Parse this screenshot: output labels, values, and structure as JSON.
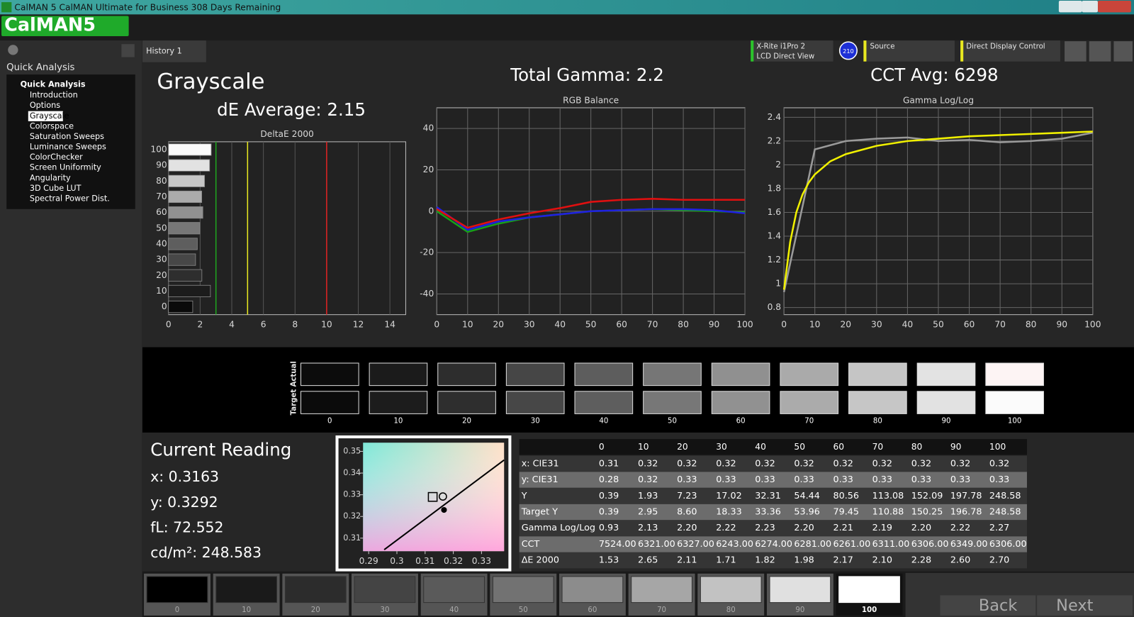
{
  "window": {
    "title": "CalMAN 5 CalMAN Ultimate for Business 308 Days Remaining",
    "logo": "CalMAN5"
  },
  "sidebar": {
    "header": "Quick Analysis",
    "group": "Quick Analysis",
    "items": [
      "Introduction",
      "Options",
      "Grayscale",
      "Colorspace",
      "Saturation Sweeps",
      "Luminance Sweeps",
      "ColorChecker",
      "Screen Uniformity",
      "Angularity",
      "3D Cube LUT",
      "Spectral Power Dist."
    ],
    "selected_index": 2
  },
  "tabs": [
    "History 1"
  ],
  "toolbar": {
    "meter": "X-Rite i1Pro 2",
    "meter_mode": "LCD Direct View",
    "badge": "210",
    "source": "Source",
    "display": "Direct Display Control"
  },
  "summary": {
    "title": "Grayscale",
    "de_average": "dE Average: 2.15",
    "total_gamma": "Total Gamma: 2.2",
    "cct_avg": "CCT Avg: 6298"
  },
  "chart_data": [
    {
      "type": "bar",
      "orientation": "horizontal",
      "title": "DeltaE 2000",
      "categories": [
        "0",
        "10",
        "20",
        "30",
        "40",
        "50",
        "60",
        "70",
        "80",
        "90",
        "100"
      ],
      "values": [
        1.53,
        2.65,
        2.11,
        1.71,
        1.82,
        1.98,
        2.17,
        2.1,
        2.28,
        2.6,
        2.7
      ],
      "colors": [
        "#0a0a0a",
        "#1c1c1c",
        "#2e2e2e",
        "#474747",
        "#5e5e5e",
        "#777777",
        "#919191",
        "#ababab",
        "#c6c6c6",
        "#e2e2e2",
        "#fafafa"
      ],
      "xlim": [
        0,
        15
      ],
      "xticks": [
        0,
        2,
        4,
        6,
        8,
        10,
        12,
        14
      ],
      "grid": true,
      "thresholds": [
        {
          "value": 3,
          "color": "#1fa51f"
        },
        {
          "value": 5,
          "color": "#e8e820"
        },
        {
          "value": 10,
          "color": "#e02222"
        }
      ]
    },
    {
      "type": "line",
      "title": "RGB Balance",
      "x": [
        0,
        10,
        20,
        30,
        40,
        50,
        60,
        70,
        80,
        90,
        100
      ],
      "xlim": [
        0,
        100
      ],
      "ylim": [
        -50,
        50
      ],
      "xticks": [
        0,
        10,
        20,
        30,
        40,
        50,
        60,
        70,
        80,
        90,
        100
      ],
      "yticks": [
        -40,
        -20,
        0,
        20,
        40
      ],
      "grid": true,
      "series": [
        {
          "color": "#18a018",
          "values": [
            0,
            -10,
            -6,
            -3,
            -1.5,
            0,
            0.5,
            1,
            0.5,
            0,
            -0.5
          ]
        },
        {
          "color": "#2020e0",
          "values": [
            2,
            -9,
            -5,
            -3,
            -1.5,
            0,
            0.5,
            1,
            1,
            0.5,
            -1
          ]
        },
        {
          "color": "#e01010",
          "values": [
            1,
            -8,
            -4,
            -1,
            1.5,
            4.5,
            5.5,
            6,
            5.5,
            5.5,
            5.5
          ]
        }
      ]
    },
    {
      "type": "line",
      "title": "Gamma Log/Log",
      "xlim": [
        0,
        100
      ],
      "ylim": [
        0.74,
        2.48
      ],
      "xticks": [
        0,
        10,
        20,
        30,
        40,
        50,
        60,
        70,
        80,
        90,
        100
      ],
      "yticks": [
        0.8,
        1,
        1.2,
        1.4,
        1.6,
        1.8,
        2,
        2.2,
        2.4
      ],
      "grid": true,
      "series": [
        {
          "color": "#9a9a9a",
          "x": [
            0,
            10,
            20,
            30,
            40,
            50,
            60,
            70,
            80,
            90,
            100
          ],
          "values": [
            0.93,
            2.13,
            2.2,
            2.22,
            2.23,
            2.2,
            2.21,
            2.19,
            2.2,
            2.22,
            2.27
          ]
        },
        {
          "color": "#f0f000",
          "x": [
            0,
            2,
            4,
            6,
            8,
            10,
            15,
            20,
            30,
            40,
            50,
            60,
            70,
            80,
            90,
            100
          ],
          "values": [
            0.95,
            1.35,
            1.6,
            1.75,
            1.85,
            1.92,
            2.03,
            2.09,
            2.16,
            2.2,
            2.22,
            2.24,
            2.25,
            2.26,
            2.27,
            2.28
          ]
        }
      ]
    },
    {
      "type": "scatter",
      "xlim": [
        0.288,
        0.338
      ],
      "ylim": [
        0.304,
        0.354
      ],
      "xticks": [
        0.29,
        0.3,
        0.31,
        0.32,
        0.33
      ],
      "yticks": [
        0.31,
        0.32,
        0.33,
        0.34,
        0.35
      ],
      "locus": {
        "x": [
          0.2955,
          0.338
        ],
        "values": [
          0.3047,
          0.346
        ]
      },
      "series": [
        {
          "marker": "square",
          "x": [
            0.3127
          ],
          "values": [
            0.329
          ]
        },
        {
          "marker": "circle",
          "x": [
            0.3163
          ],
          "values": [
            0.3292
          ]
        },
        {
          "marker": "dot",
          "x": [
            0.3167
          ],
          "values": [
            0.323
          ]
        }
      ]
    }
  ],
  "swatches": {
    "actual_label": "Actual",
    "target_label": "Target",
    "categories": [
      "0",
      "10",
      "20",
      "30",
      "40",
      "50",
      "60",
      "70",
      "80",
      "90",
      "100"
    ],
    "actual_colors": [
      "#0c0c0c",
      "#1b1b1b",
      "#2d2d2d",
      "#464646",
      "#5d5d5d",
      "#767676",
      "#909090",
      "#aaaaaa",
      "#c5c5c5",
      "#e3e3e3",
      "#fdf4f4"
    ],
    "target_colors": [
      "#0b0b0b",
      "#1c1c1c",
      "#2e2e2e",
      "#474747",
      "#5e5e5e",
      "#777777",
      "#919191",
      "#ababab",
      "#c6c6c6",
      "#e2e2e2",
      "#fbfbfb"
    ]
  },
  "reading": {
    "title": "Current Reading",
    "lines": [
      "x: 0.3163",
      "y: 0.3292",
      "fL: 72.552",
      "cd/m²: 248.583"
    ]
  },
  "table": {
    "columns": [
      "0",
      "10",
      "20",
      "30",
      "40",
      "50",
      "60",
      "70",
      "80",
      "90",
      "100"
    ],
    "rows": [
      {
        "label": "x: CIE31",
        "cells": [
          "0.31",
          "0.32",
          "0.32",
          "0.32",
          "0.32",
          "0.32",
          "0.32",
          "0.32",
          "0.32",
          "0.32",
          "0.32"
        ]
      },
      {
        "label": "y: CIE31",
        "cells": [
          "0.28",
          "0.32",
          "0.33",
          "0.33",
          "0.33",
          "0.33",
          "0.33",
          "0.33",
          "0.33",
          "0.33",
          "0.33"
        ]
      },
      {
        "label": "Y",
        "cells": [
          "0.39",
          "1.93",
          "7.23",
          "17.02",
          "32.31",
          "54.44",
          "80.56",
          "113.08",
          "152.09",
          "197.78",
          "248.58"
        ]
      },
      {
        "label": "Target Y",
        "cells": [
          "0.39",
          "2.95",
          "8.60",
          "18.33",
          "33.36",
          "53.96",
          "79.45",
          "110.88",
          "150.25",
          "196.78",
          "248.58"
        ]
      },
      {
        "label": "Gamma Log/Log",
        "cells": [
          "0.93",
          "2.13",
          "2.20",
          "2.22",
          "2.23",
          "2.20",
          "2.21",
          "2.19",
          "2.20",
          "2.22",
          "2.27"
        ]
      },
      {
        "label": "CCT",
        "cells": [
          "7524.00",
          "6321.00",
          "6327.00",
          "6243.00",
          "6274.00",
          "6281.00",
          "6261.00",
          "6311.00",
          "6306.00",
          "6349.00",
          "6306.00"
        ]
      },
      {
        "label": "ΔE 2000",
        "cells": [
          "1.53",
          "2.65",
          "2.11",
          "1.71",
          "1.82",
          "1.98",
          "2.17",
          "2.10",
          "2.28",
          "2.60",
          "2.70"
        ]
      }
    ]
  },
  "patch_bar": {
    "labels": [
      "0",
      "10",
      "20",
      "30",
      "40",
      "50",
      "60",
      "70",
      "80",
      "90",
      "100"
    ],
    "selected_index": 10,
    "colors": [
      "#000000",
      "#1a1a1a",
      "#2c2c2c",
      "#444444",
      "#5a5a5a",
      "#727272",
      "#8c8c8c",
      "#a6a6a6",
      "#c2c2c2",
      "#e0e0e0",
      "#ffffff"
    ],
    "back": "Back",
    "next": "Next"
  }
}
